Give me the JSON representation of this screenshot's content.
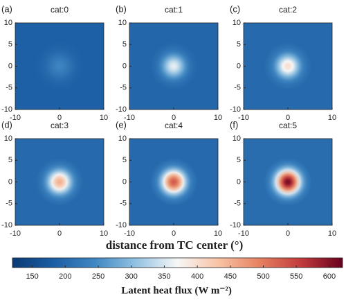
{
  "chart_data": {
    "type": "heatmap",
    "xlabel": "distance from TC center (°)",
    "xlim": [
      -10,
      10
    ],
    "ylim": [
      -10,
      10
    ],
    "xticks": [
      -10,
      0,
      10
    ],
    "yticks": [
      -10,
      -5,
      0,
      5,
      10
    ],
    "panels": [
      {
        "label": "(a)",
        "title": "cat:0",
        "peak": 240,
        "background": 185,
        "radius": 6
      },
      {
        "label": "(b)",
        "title": "cat:1",
        "peak": 360,
        "background": 195,
        "radius": 5.5
      },
      {
        "label": "(c)",
        "title": "cat:2",
        "peak": 400,
        "background": 200,
        "radius": 5.5
      },
      {
        "label": "(d)",
        "title": "cat:3",
        "peak": 450,
        "background": 200,
        "radius": 5.5
      },
      {
        "label": "(e)",
        "title": "cat:4",
        "peak": 530,
        "background": 200,
        "radius": 5.5
      },
      {
        "label": "(f)",
        "title": "cat:5",
        "peak": 610,
        "background": 205,
        "radius": 5.5
      }
    ],
    "colorbar": {
      "label": "Latent heat flux (W m⁻²)",
      "clim": [
        120,
        620
      ],
      "ticks": [
        150,
        200,
        250,
        300,
        350,
        400,
        450,
        500,
        550,
        600
      ],
      "colormap": [
        "#0a3a74",
        "#1c5ea4",
        "#3f87c2",
        "#93c2e2",
        "#f7f7f7",
        "#f8c2a4",
        "#e6805f",
        "#c13b3c",
        "#67001f"
      ]
    }
  }
}
